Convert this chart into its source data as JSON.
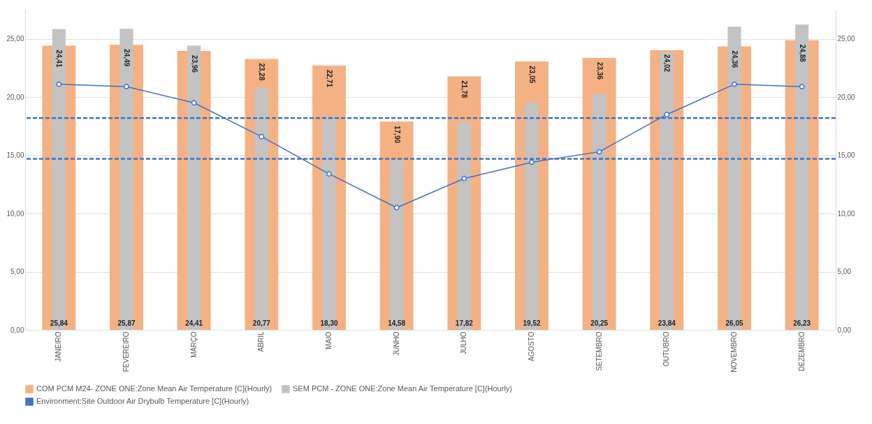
{
  "chart_data": {
    "type": "bar",
    "categories": [
      "JANEIRO",
      "FEVEREIRO",
      "MARÇO",
      "ABRIL",
      "MAIO",
      "JUNHO",
      "JULHO",
      "AGOSTO",
      "SETEMBRO",
      "OUTUBRO",
      "NOVEMBRO",
      "DEZEMBRO"
    ],
    "series": [
      {
        "name": "COM PCM M24- ZONE ONE:Zone Mean Air Temperature [C](Hourly)",
        "color": "#f4b183",
        "values": [
          24.41,
          24.49,
          23.96,
          23.28,
          22.71,
          17.9,
          21.78,
          23.05,
          23.36,
          24.02,
          24.36,
          24.88
        ],
        "value_labels": [
          "24,41",
          "24,49",
          "23,96",
          "23,28",
          "22,71",
          "17,90",
          "21,78",
          "23,05",
          "23,36",
          "24,02",
          "24,36",
          "24,88"
        ]
      },
      {
        "name": "SEM PCM - ZONE ONE:Zone Mean Air Temperature [C](Hourly)",
        "color": "#c3c3c3",
        "values": [
          25.84,
          25.87,
          24.41,
          20.77,
          18.3,
          14.58,
          17.82,
          19.52,
          20.25,
          23.84,
          26.05,
          26.23
        ],
        "value_labels": [
          "25,84",
          "25,87",
          "24,41",
          "20,77",
          "18,30",
          "14,58",
          "17,82",
          "19,52",
          "20,25",
          "23,84",
          "26,05",
          "26,23"
        ]
      },
      {
        "name": "Environment:Site Outdoor Air Drybulb Temperature [C](Hourly)",
        "type": "line",
        "axis": "y2",
        "color": "#4472c4",
        "marker": "circle",
        "values": [
          21.1,
          20.9,
          19.5,
          16.6,
          13.4,
          10.5,
          13.0,
          14.4,
          15.3,
          18.5,
          21.1,
          20.9
        ]
      }
    ],
    "ylim": [
      0,
      27.5
    ],
    "yticks": [
      {
        "value": 0,
        "label": "0,00"
      },
      {
        "value": 5,
        "label": "5,00"
      },
      {
        "value": 10,
        "label": "10,00"
      },
      {
        "value": 15,
        "label": "15,00"
      },
      {
        "value": 20,
        "label": "20,00"
      },
      {
        "value": 25,
        "label": "25,00"
      }
    ],
    "y2lim": [
      0,
      27.5
    ],
    "y2ticks": [
      {
        "value": 0,
        "label": "0,00"
      },
      {
        "value": 5,
        "label": "5,00"
      },
      {
        "value": 10,
        "label": "10,00"
      },
      {
        "value": 15,
        "label": "15,00"
      },
      {
        "value": 20,
        "label": "20,00"
      },
      {
        "value": 25,
        "label": "25,00"
      }
    ],
    "ref_lines": [
      {
        "axis": "y",
        "value": 18.2,
        "color": "#4472c4",
        "line_style": "dashed"
      },
      {
        "axis": "y",
        "value": 14.7,
        "color": "#4472c4",
        "line_style": "dashed"
      }
    ],
    "grid": "y",
    "legend": "bottom"
  }
}
